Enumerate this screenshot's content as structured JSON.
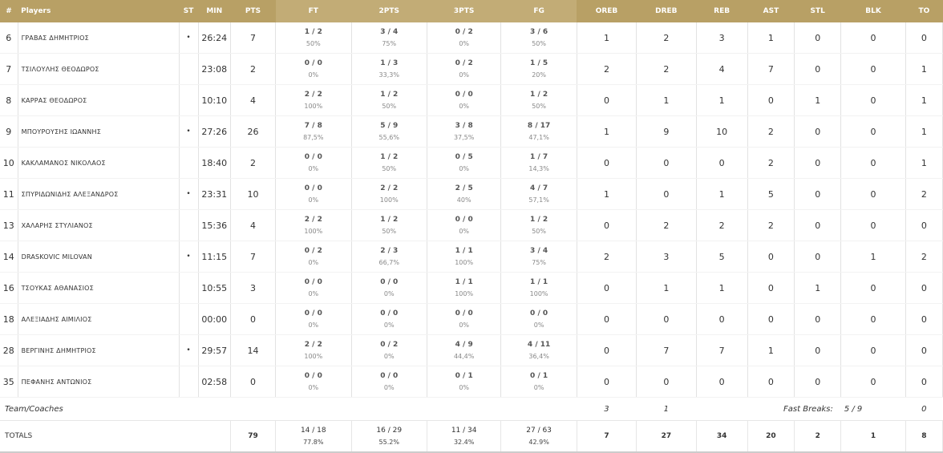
{
  "headers": [
    "#",
    "Players",
    "ST",
    "MIN",
    "PTS",
    "FT",
    "2PTS",
    "3PTS",
    "FG",
    "OREB",
    "DREB",
    "REB",
    "AST",
    "STL",
    "BLK",
    "TO"
  ],
  "players": [
    {
      "no": "6",
      "name": "ΓΡΑΒΑΣ ΔΗΜΗΤΡΙΟΣ",
      "st": "•",
      "min": "26:24",
      "pts": "7",
      "ft": "1 / 2",
      "ft_pct": "50%",
      "p2": "3 / 4",
      "p2_pct": "75%",
      "p3": "0 / 2",
      "p3_pct": "0%",
      "fg": "3 / 6",
      "fg_pct": "50%",
      "oreb": "1",
      "dreb": "2",
      "reb": "3",
      "ast": "1",
      "stl": "0",
      "blk": "0",
      "to": "0"
    },
    {
      "no": "7",
      "name": "ΤΣΙΛΟΥΛΗΣ ΘΕΟΔΩΡΟΣ",
      "st": "",
      "min": "23:08",
      "pts": "2",
      "ft": "0 / 0",
      "ft_pct": "0%",
      "p2": "1 / 3",
      "p2_pct": "33,3%",
      "p3": "0 / 2",
      "p3_pct": "0%",
      "fg": "1 / 5",
      "fg_pct": "20%",
      "oreb": "2",
      "dreb": "2",
      "reb": "4",
      "ast": "7",
      "stl": "0",
      "blk": "0",
      "to": "1"
    },
    {
      "no": "8",
      "name": "ΚΑΡΡΑΣ ΘΕΟΔΩΡΟΣ",
      "st": "",
      "min": "10:10",
      "pts": "4",
      "ft": "2 / 2",
      "ft_pct": "100%",
      "p2": "1 / 2",
      "p2_pct": "50%",
      "p3": "0 / 0",
      "p3_pct": "0%",
      "fg": "1 / 2",
      "fg_pct": "50%",
      "oreb": "0",
      "dreb": "1",
      "reb": "1",
      "ast": "0",
      "stl": "1",
      "blk": "0",
      "to": "1"
    },
    {
      "no": "9",
      "name": "ΜΠΟΥΡΟΥΣΗΣ ΙΩΑΝΝΗΣ",
      "st": "•",
      "min": "27:26",
      "pts": "26",
      "ft": "7 / 8",
      "ft_pct": "87,5%",
      "p2": "5 / 9",
      "p2_pct": "55,6%",
      "p3": "3 / 8",
      "p3_pct": "37,5%",
      "fg": "8 / 17",
      "fg_pct": "47,1%",
      "oreb": "1",
      "dreb": "9",
      "reb": "10",
      "ast": "2",
      "stl": "0",
      "blk": "0",
      "to": "1"
    },
    {
      "no": "10",
      "name": "ΚΑΚΛΑΜΑΝΟΣ ΝΙΚΟΛΑΟΣ",
      "st": "",
      "min": "18:40",
      "pts": "2",
      "ft": "0 / 0",
      "ft_pct": "0%",
      "p2": "1 / 2",
      "p2_pct": "50%",
      "p3": "0 / 5",
      "p3_pct": "0%",
      "fg": "1 / 7",
      "fg_pct": "14,3%",
      "oreb": "0",
      "dreb": "0",
      "reb": "0",
      "ast": "2",
      "stl": "0",
      "blk": "0",
      "to": "1"
    },
    {
      "no": "11",
      "name": "ΣΠΥΡΙΔΩΝΙΔΗΣ ΑΛΕΞΑΝΔΡΟΣ",
      "st": "•",
      "min": "23:31",
      "pts": "10",
      "ft": "0 / 0",
      "ft_pct": "0%",
      "p2": "2 / 2",
      "p2_pct": "100%",
      "p3": "2 / 5",
      "p3_pct": "40%",
      "fg": "4 / 7",
      "fg_pct": "57,1%",
      "oreb": "1",
      "dreb": "0",
      "reb": "1",
      "ast": "5",
      "stl": "0",
      "blk": "0",
      "to": "2"
    },
    {
      "no": "13",
      "name": "ΧΑΛΑΡΗΣ ΣΤΥΛΙΑΝΟΣ",
      "st": "",
      "min": "15:36",
      "pts": "4",
      "ft": "2 / 2",
      "ft_pct": "100%",
      "p2": "1 / 2",
      "p2_pct": "50%",
      "p3": "0 / 0",
      "p3_pct": "0%",
      "fg": "1 / 2",
      "fg_pct": "50%",
      "oreb": "0",
      "dreb": "2",
      "reb": "2",
      "ast": "2",
      "stl": "0",
      "blk": "0",
      "to": "0"
    },
    {
      "no": "14",
      "name": "DRASKOVIC MILOVAN",
      "st": "•",
      "min": "11:15",
      "pts": "7",
      "ft": "0 / 2",
      "ft_pct": "0%",
      "p2": "2 / 3",
      "p2_pct": "66,7%",
      "p3": "1 / 1",
      "p3_pct": "100%",
      "fg": "3 / 4",
      "fg_pct": "75%",
      "oreb": "2",
      "dreb": "3",
      "reb": "5",
      "ast": "0",
      "stl": "0",
      "blk": "1",
      "to": "2"
    },
    {
      "no": "16",
      "name": "ΤΣΟΥΚΑΣ ΑΘΑΝΑΣΙΟΣ",
      "st": "",
      "min": "10:55",
      "pts": "3",
      "ft": "0 / 0",
      "ft_pct": "0%",
      "p2": "0 / 0",
      "p2_pct": "0%",
      "p3": "1 / 1",
      "p3_pct": "100%",
      "fg": "1 / 1",
      "fg_pct": "100%",
      "oreb": "0",
      "dreb": "1",
      "reb": "1",
      "ast": "0",
      "stl": "1",
      "blk": "0",
      "to": "0"
    },
    {
      "no": "18",
      "name": "ΑΛΕΞΙΑΔΗΣ ΑΙΜΙΛΙΟΣ",
      "st": "",
      "min": "00:00",
      "pts": "0",
      "ft": "0 / 0",
      "ft_pct": "0%",
      "p2": "0 / 0",
      "p2_pct": "0%",
      "p3": "0 / 0",
      "p3_pct": "0%",
      "fg": "0 / 0",
      "fg_pct": "0%",
      "oreb": "0",
      "dreb": "0",
      "reb": "0",
      "ast": "0",
      "stl": "0",
      "blk": "0",
      "to": "0"
    },
    {
      "no": "28",
      "name": "ΒΕΡΓΙΝΗΣ ΔΗΜΗΤΡΙΟΣ",
      "st": "•",
      "min": "29:57",
      "pts": "14",
      "ft": "2 / 2",
      "ft_pct": "100%",
      "p2": "0 / 2",
      "p2_pct": "0%",
      "p3": "4 / 9",
      "p3_pct": "44,4%",
      "fg": "4 / 11",
      "fg_pct": "36,4%",
      "oreb": "0",
      "dreb": "7",
      "reb": "7",
      "ast": "1",
      "stl": "0",
      "blk": "0",
      "to": "0"
    },
    {
      "no": "35",
      "name": "ΠΕΦΑΝΗΣ ΑΝΤΩΝΙΟΣ",
      "st": "",
      "min": "02:58",
      "pts": "0",
      "ft": "0 / 0",
      "ft_pct": "0%",
      "p2": "0 / 0",
      "p2_pct": "0%",
      "p3": "0 / 1",
      "p3_pct": "0%",
      "fg": "0 / 1",
      "fg_pct": "0%",
      "oreb": "0",
      "dreb": "0",
      "reb": "0",
      "ast": "0",
      "stl": "0",
      "blk": "0",
      "to": "0"
    }
  ],
  "team": {
    "label": "Team/Coaches",
    "oreb": "3",
    "dreb": "1",
    "fast_breaks_label": "Fast Breaks:",
    "fast_breaks_value": "5 / 9",
    "to": "0"
  },
  "totals": {
    "label": "TOTALS",
    "pts": "79",
    "ft": "14 / 18",
    "ft_pct": "77.8%",
    "p2": "16 / 29",
    "p2_pct": "55.2%",
    "p3": "11 / 34",
    "p3_pct": "32.4%",
    "fg": "27 / 63",
    "fg_pct": "42.9%",
    "oreb": "7",
    "dreb": "27",
    "reb": "34",
    "ast": "20",
    "stl": "2",
    "blk": "1",
    "to": "8"
  },
  "colors": {
    "header_bg": "#b8a065",
    "header_text": "#ffffff"
  }
}
